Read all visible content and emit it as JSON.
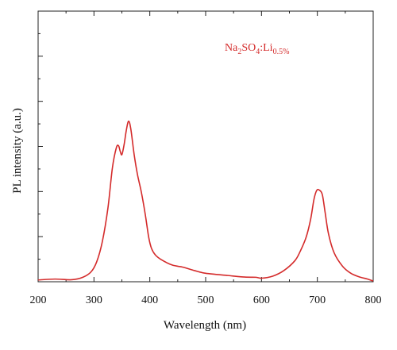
{
  "chart_data": {
    "type": "line",
    "xlabel": "Wavelength (nm)",
    "ylabel": "PL intensity (a.u.)",
    "xlim": [
      200,
      800
    ],
    "ylim": [
      0,
      100
    ],
    "x_ticks": [
      200,
      300,
      400,
      500,
      600,
      700,
      800
    ],
    "y_tick_labels_shown": false,
    "grid": false,
    "annotation": {
      "base": "Na",
      "sub1": "2",
      "mid": "SO",
      "sub2": "4",
      "sep": ":Li",
      "sub3": "0.5%"
    },
    "series": [
      {
        "color": "#d42b2b",
        "x": [
          200,
          230,
          260,
          280,
          295,
          305,
          315,
          325,
          333,
          340,
          344,
          347,
          350,
          354,
          358,
          362,
          366,
          372,
          378,
          385,
          392,
          398,
          403,
          410,
          420,
          440,
          460,
          480,
          500,
          540,
          570,
          590,
          600,
          620,
          640,
          660,
          670,
          680,
          688,
          694,
          699,
          704,
          709,
          714,
          720,
          730,
          745,
          760,
          775,
          790,
          800
        ],
        "y": [
          0.8,
          1.2,
          0.9,
          2.0,
          4.5,
          9.0,
          18.0,
          33.0,
          51.0,
          60.0,
          61.0,
          58.5,
          57.0,
          61.5,
          68.0,
          72.0,
          68.5,
          57.0,
          48.0,
          40.0,
          30.0,
          20.0,
          15.0,
          12.0,
          10.0,
          7.5,
          6.5,
          5.0,
          3.8,
          2.8,
          2.1,
          2.0,
          1.6,
          2.5,
          5.0,
          9.5,
          14.0,
          20.0,
          28.0,
          37.0,
          41.0,
          41.0,
          39.0,
          31.0,
          21.5,
          13.0,
          7.0,
          3.8,
          2.2,
          1.2,
          0.3
        ]
      }
    ]
  }
}
